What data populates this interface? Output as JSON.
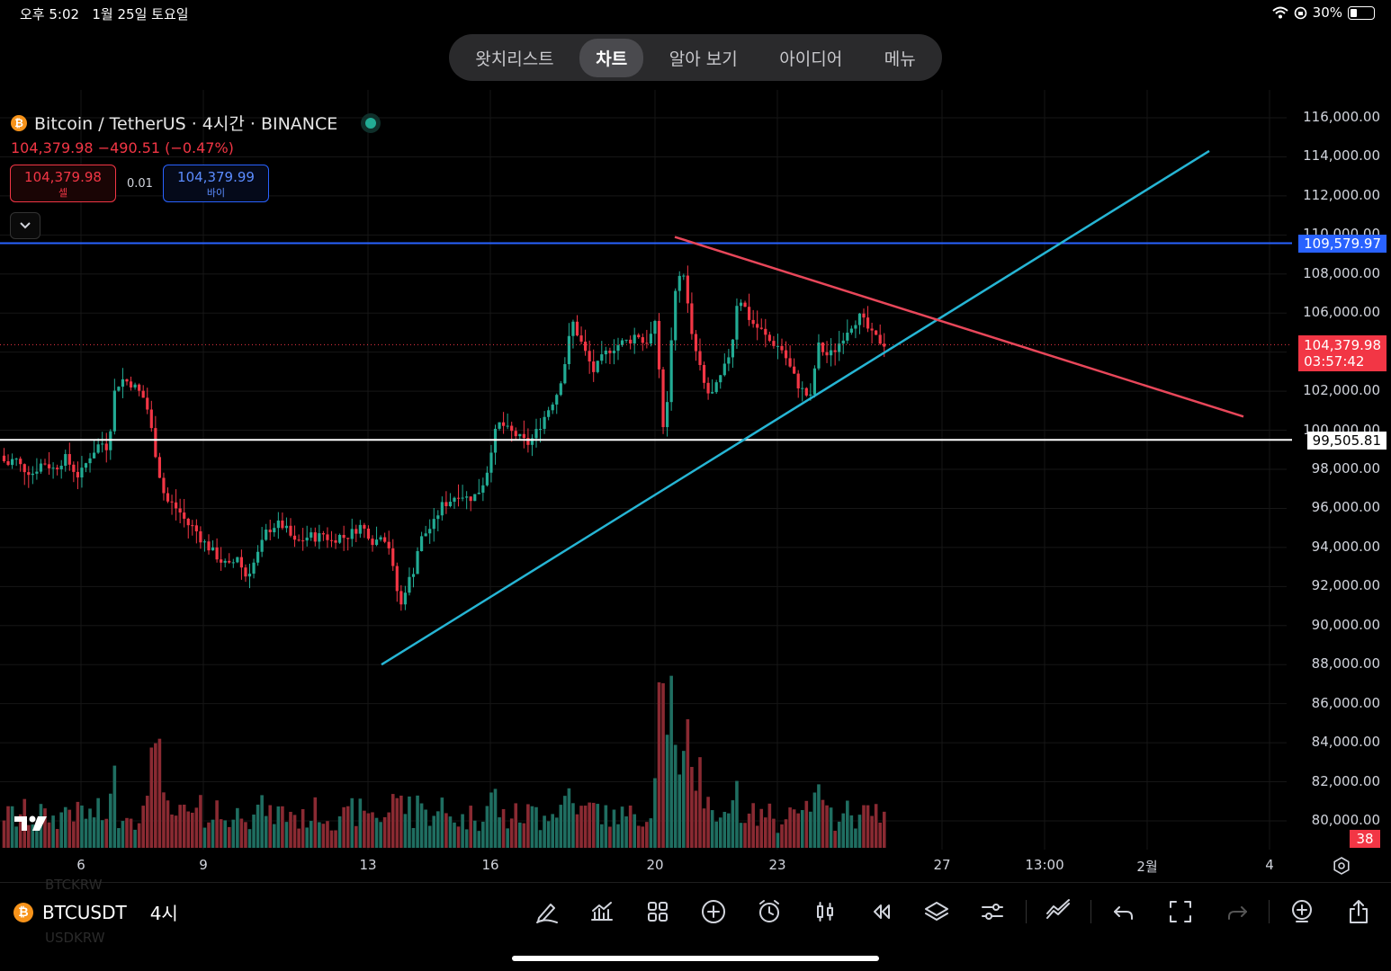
{
  "status_bar": {
    "time": "오후 5:02",
    "date": "1월 25일 토요일",
    "battery": "30%",
    "battery_level": 0.3
  },
  "nav": {
    "items": [
      {
        "label": "왓치리스트",
        "active": false
      },
      {
        "label": "차트",
        "active": true
      },
      {
        "label": "알아 보기",
        "active": false
      },
      {
        "label": "아이디어",
        "active": false
      },
      {
        "label": "메뉴",
        "active": false
      }
    ]
  },
  "symbol": {
    "title": "Bitcoin / TetherUS · 4시간 · BINANCE",
    "coin_icon": "bitcoin-icon",
    "price_change": "104,379.98 −490.51 (−0.47%)",
    "sell_price": "104,379.98",
    "sell_label": "셀",
    "buy_price": "104,379.99",
    "buy_label": "바이",
    "spread": "0.01"
  },
  "y_axis": {
    "labels": [
      "116,000.00",
      "114,000.00",
      "112,000.00",
      "110,000.00",
      "108,000.00",
      "106,000.00",
      "104,000.00",
      "102,000.00",
      "100,000.00",
      "98,000.00",
      "96,000.00",
      "94,000.00",
      "92,000.00",
      "90,000.00",
      "88,000.00",
      "86,000.00",
      "84,000.00",
      "82,000.00",
      "80,000.00"
    ]
  },
  "x_axis": {
    "labels": [
      "6",
      "9",
      "13",
      "16",
      "20",
      "23",
      "27",
      "13:00",
      "2월",
      "4"
    ]
  },
  "price_tags": {
    "resistance": "109,579.97",
    "current_price": "104,379.98",
    "countdown": "03:57:42",
    "support": "99,505.81",
    "volume": "38"
  },
  "colors": {
    "up": "#22ab94",
    "down": "#f23645",
    "blue_line": "#2962ff",
    "white_line": "#ffffff",
    "trend_up": "#26b5d4",
    "trend_down": "#e8475a"
  },
  "bottom": {
    "symbol": "BTCUSDT",
    "interval": "4시",
    "ghost_top": "BTCKRW",
    "ghost_bottom": "USDKRW"
  },
  "toolbar_icons": [
    "pen-icon",
    "indicators-icon",
    "templates-icon",
    "add-icon",
    "alert-icon",
    "candles-icon",
    "replay-icon",
    "layers-icon",
    "settings-sliders-icon",
    "trend-tool-icon",
    "undo-icon",
    "fullscreen-icon",
    "redo-icon",
    "add-watchlist-icon",
    "share-icon"
  ],
  "chart_data": {
    "type": "candlestick",
    "title": "Bitcoin / TetherUS · 4시간 · BINANCE",
    "ylim": [
      79000,
      117000
    ],
    "x_ticks": [
      "6",
      "9",
      "13",
      "16",
      "20",
      "23",
      "27",
      "13:00",
      "2월",
      "4"
    ],
    "close_path": [
      [
        0,
        98700
      ],
      [
        8,
        98200
      ],
      [
        16,
        98600
      ],
      [
        24,
        98100
      ],
      [
        36,
        97800
      ],
      [
        48,
        98400
      ],
      [
        60,
        98000
      ],
      [
        72,
        98600
      ],
      [
        88,
        97600
      ],
      [
        100,
        98700
      ],
      [
        112,
        99400
      ],
      [
        120,
        99100
      ],
      [
        128,
        102200
      ],
      [
        136,
        102600
      ],
      [
        146,
        102400
      ],
      [
        154,
        102000
      ],
      [
        162,
        101500
      ],
      [
        170,
        99600
      ],
      [
        176,
        98000
      ],
      [
        184,
        96400
      ],
      [
        192,
        96200
      ],
      [
        200,
        95800
      ],
      [
        208,
        95200
      ],
      [
        216,
        95000
      ],
      [
        224,
        94400
      ],
      [
        232,
        94000
      ],
      [
        240,
        93600
      ],
      [
        248,
        93200
      ],
      [
        256,
        93000
      ],
      [
        264,
        93600
      ],
      [
        272,
        92500
      ],
      [
        280,
        93000
      ],
      [
        288,
        93800
      ],
      [
        296,
        94800
      ],
      [
        304,
        95100
      ],
      [
        312,
        95200
      ],
      [
        320,
        94800
      ],
      [
        328,
        94200
      ],
      [
        336,
        94400
      ],
      [
        344,
        94600
      ],
      [
        352,
        94500
      ],
      [
        360,
        94700
      ],
      [
        368,
        94300
      ],
      [
        376,
        94600
      ],
      [
        384,
        94500
      ],
      [
        392,
        94800
      ],
      [
        400,
        95100
      ],
      [
        408,
        94800
      ],
      [
        416,
        94200
      ],
      [
        424,
        94800
      ],
      [
        432,
        94100
      ],
      [
        440,
        92000
      ],
      [
        446,
        91000
      ],
      [
        452,
        92200
      ],
      [
        458,
        92500
      ],
      [
        466,
        94300
      ],
      [
        474,
        94800
      ],
      [
        482,
        95200
      ],
      [
        490,
        96100
      ],
      [
        500,
        96400
      ],
      [
        510,
        96800
      ],
      [
        520,
        96500
      ],
      [
        530,
        96700
      ],
      [
        540,
        97600
      ],
      [
        548,
        99600
      ],
      [
        556,
        100400
      ],
      [
        564,
        100000
      ],
      [
        572,
        99800
      ],
      [
        580,
        99500
      ],
      [
        588,
        99300
      ],
      [
        596,
        99900
      ],
      [
        604,
        100600
      ],
      [
        612,
        101300
      ],
      [
        620,
        102000
      ],
      [
        628,
        103500
      ],
      [
        636,
        105600
      ],
      [
        644,
        104700
      ],
      [
        652,
        103800
      ],
      [
        660,
        103000
      ],
      [
        668,
        103600
      ],
      [
        676,
        104100
      ],
      [
        684,
        104300
      ],
      [
        692,
        104500
      ],
      [
        700,
        104600
      ],
      [
        708,
        105000
      ],
      [
        716,
        104400
      ],
      [
        724,
        104900
      ],
      [
        730,
        105600
      ],
      [
        736,
        100100
      ],
      [
        742,
        101400
      ],
      [
        748,
        106200
      ],
      [
        754,
        107800
      ],
      [
        760,
        108100
      ],
      [
        766,
        105700
      ],
      [
        772,
        104100
      ],
      [
        778,
        103200
      ],
      [
        784,
        102100
      ],
      [
        790,
        101700
      ],
      [
        796,
        102200
      ],
      [
        802,
        102800
      ],
      [
        808,
        103500
      ],
      [
        814,
        104600
      ],
      [
        820,
        106900
      ],
      [
        826,
        106500
      ],
      [
        832,
        105800
      ],
      [
        838,
        105400
      ],
      [
        846,
        105100
      ],
      [
        854,
        104600
      ],
      [
        862,
        104400
      ],
      [
        870,
        104100
      ],
      [
        878,
        103200
      ],
      [
        886,
        102400
      ],
      [
        894,
        101900
      ],
      [
        902,
        101600
      ],
      [
        908,
        104400
      ],
      [
        914,
        104100
      ],
      [
        920,
        103800
      ],
      [
        926,
        104000
      ],
      [
        932,
        104400
      ],
      [
        938,
        104900
      ],
      [
        944,
        105300
      ],
      [
        950,
        105600
      ],
      [
        956,
        105800
      ],
      [
        962,
        105400
      ],
      [
        968,
        104900
      ],
      [
        974,
        104700
      ],
      [
        980,
        104500
      ],
      [
        986,
        104380
      ]
    ],
    "horizontal_lines": [
      {
        "name": "resistance",
        "value": 109579.97,
        "color": "#2962ff"
      },
      {
        "name": "support",
        "value": 99505.81,
        "color": "#ffffff"
      }
    ],
    "trend_lines": [
      {
        "name": "ascending",
        "from": [
          424,
          88000
        ],
        "to": [
          1344,
          114300
        ],
        "color": "#26b5d4"
      },
      {
        "name": "descending",
        "from": [
          750,
          109900
        ],
        "to": [
          1382,
          100700
        ],
        "color": "#e8475a"
      }
    ],
    "current_price": 104379.98,
    "volume_max": 38
  }
}
